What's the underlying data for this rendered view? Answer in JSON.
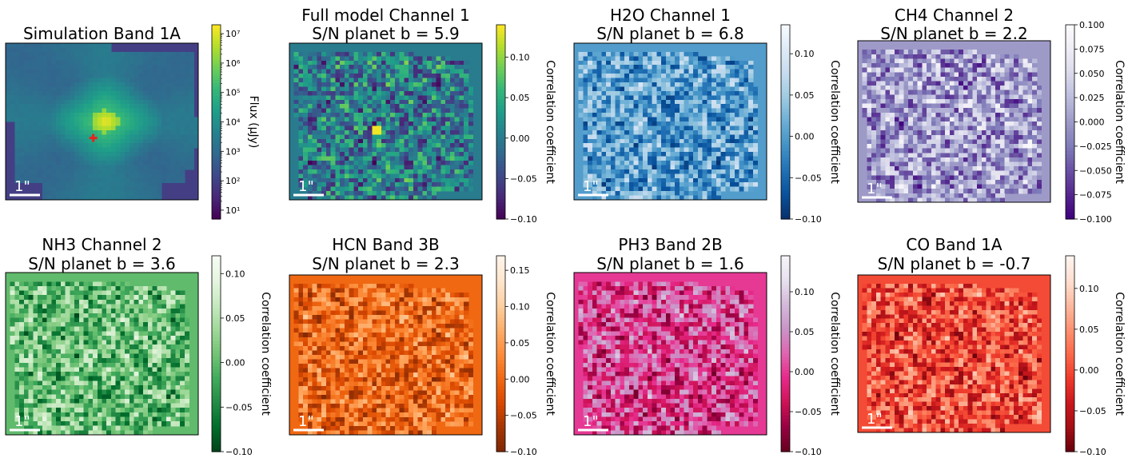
{
  "colorbar_label_flux": "Flux (μJy)",
  "colorbar_label_corr": "Correlation coefficient",
  "scale_bar_label": "1\"",
  "chart_data": [
    {
      "type": "heatmap",
      "title_lines": [
        "Simulation Band 1A"
      ],
      "cmap": "viridis",
      "colorbar": {
        "scale": "log",
        "range": [
          5,
          20000000
        ],
        "ticks": [
          10,
          100,
          1000,
          10000,
          100000,
          1000000,
          10000000
        ],
        "tick_labels": [
          "10¹",
          "10²",
          "10³",
          "10⁴",
          "10⁵",
          "10⁶",
          "10⁷"
        ],
        "label_key": "colorbar_label_flux"
      },
      "marker": {
        "symbol": "plus",
        "color": "#e8231e"
      }
    },
    {
      "type": "heatmap",
      "title_lines": [
        "Full model Channel 1",
        "S/N planet b = 5.9"
      ],
      "cmap": "viridis",
      "colorbar": {
        "scale": "linear",
        "range": [
          -0.1,
          0.14
        ],
        "ticks": [
          -0.1,
          -0.05,
          0.0,
          0.05,
          0.1
        ],
        "tick_labels": [
          "−0.10",
          "−0.05",
          "0.00",
          "0.05",
          "0.10"
        ],
        "label_key": "colorbar_label_corr"
      }
    },
    {
      "type": "heatmap",
      "title_lines": [
        "H2O Channel 1",
        "S/N planet b = 6.8"
      ],
      "cmap": "Blues_r",
      "colorbar": {
        "scale": "linear",
        "range": [
          -0.1,
          0.135
        ],
        "ticks": [
          -0.1,
          -0.05,
          0.0,
          0.05,
          0.1
        ],
        "tick_labels": [
          "−0.10",
          "−0.05",
          "0.00",
          "0.05",
          "0.10"
        ],
        "label_key": "colorbar_label_corr"
      }
    },
    {
      "type": "heatmap",
      "title_lines": [
        "CH4 Channel 2",
        "S/N planet b = 2.2"
      ],
      "cmap": "Purples_r",
      "colorbar": {
        "scale": "linear",
        "range": [
          -0.1,
          0.1
        ],
        "ticks": [
          -0.1,
          -0.075,
          -0.05,
          -0.025,
          0.0,
          0.025,
          0.05,
          0.075,
          0.1
        ],
        "tick_labels": [
          "−0.100",
          "−0.075",
          "−0.050",
          "−0.025",
          "0.000",
          "0.025",
          "0.050",
          "0.075",
          "0.100"
        ],
        "label_key": "colorbar_label_corr"
      }
    },
    {
      "type": "heatmap",
      "title_lines": [
        "NH3 Channel 2",
        "S/N planet b = 3.6"
      ],
      "cmap": "Greens_r",
      "colorbar": {
        "scale": "linear",
        "range": [
          -0.1,
          0.12
        ],
        "ticks": [
          -0.1,
          -0.05,
          0.0,
          0.05,
          0.1
        ],
        "tick_labels": [
          "−0.10",
          "−0.05",
          "0.00",
          "0.05",
          "0.10"
        ],
        "label_key": "colorbar_label_corr"
      }
    },
    {
      "type": "heatmap",
      "title_lines": [
        "HCN Band 3B",
        "S/N planet b = 2.3"
      ],
      "cmap": "Oranges_r",
      "colorbar": {
        "scale": "linear",
        "range": [
          -0.1,
          0.17
        ],
        "ticks": [
          -0.1,
          -0.05,
          0.0,
          0.05,
          0.1,
          0.15
        ],
        "tick_labels": [
          "−0.10",
          "−0.05",
          "0.00",
          "0.05",
          "0.10",
          "0.15"
        ],
        "label_key": "colorbar_label_corr"
      }
    },
    {
      "type": "heatmap",
      "title_lines": [
        "PH3 Band 2B",
        "S/N planet b = 1.6"
      ],
      "cmap": "PuRd_r",
      "colorbar": {
        "scale": "linear",
        "range": [
          -0.1,
          0.145
        ],
        "ticks": [
          -0.1,
          -0.05,
          0.0,
          0.05,
          0.1
        ],
        "tick_labels": [
          "−0.10",
          "−0.05",
          "0.00",
          "0.05",
          "0.10"
        ],
        "label_key": "colorbar_label_corr"
      }
    },
    {
      "type": "heatmap",
      "title_lines": [
        "CO Band 1A",
        "S/N planet b = -0.7"
      ],
      "cmap": "Reds_r",
      "colorbar": {
        "scale": "linear",
        "range": [
          -0.1,
          0.14
        ],
        "ticks": [
          -0.1,
          -0.05,
          0.0,
          0.05,
          0.1
        ],
        "tick_labels": [
          "−0.10",
          "−0.05",
          "0.00",
          "0.05",
          "0.10"
        ],
        "label_key": "colorbar_label_corr"
      }
    }
  ]
}
